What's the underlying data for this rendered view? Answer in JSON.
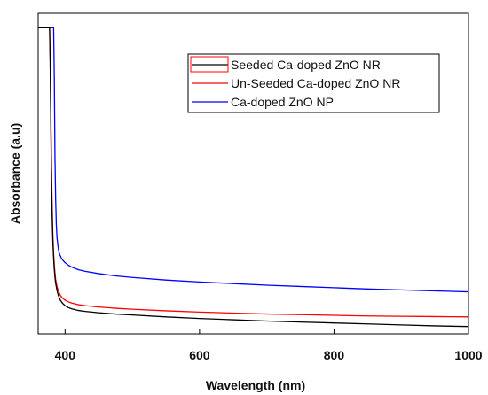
{
  "chart_data": {
    "type": "line",
    "xlabel": "Wavelength (nm)",
    "ylabel": "Absorbance (a.u)",
    "xlim": [
      360,
      1000
    ],
    "ylim": [
      0,
      1
    ],
    "x_ticks": [
      400,
      600,
      800,
      1000
    ],
    "x_tick_labels": [
      "400",
      "600",
      "800",
      "1000"
    ],
    "grid": false,
    "legend_position": "top-right",
    "series": [
      {
        "name": "Seeded Ca-doped ZnO NR",
        "color": "#000000",
        "x": [
          360,
          377,
          378,
          379,
          380,
          381,
          382,
          383,
          384,
          385,
          386,
          388,
          390,
          393,
          396,
          400,
          405,
          410,
          420,
          430,
          450,
          475,
          500,
          550,
          600,
          650,
          700,
          750,
          800,
          850,
          900,
          950,
          1000
        ],
        "y": [
          0.955,
          0.955,
          0.82,
          0.62,
          0.45,
          0.35,
          0.28,
          0.235,
          0.2,
          0.175,
          0.158,
          0.135,
          0.12,
          0.105,
          0.096,
          0.088,
          0.082,
          0.078,
          0.073,
          0.07,
          0.066,
          0.062,
          0.059,
          0.053,
          0.048,
          0.044,
          0.04,
          0.037,
          0.034,
          0.031,
          0.028,
          0.025,
          0.023
        ]
      },
      {
        "name": "Un-Seeded Ca-doped ZnO NR",
        "color": "#ff0000",
        "x": [
          360,
          377,
          378,
          379,
          380,
          381,
          382,
          383,
          384,
          385,
          386,
          388,
          390,
          393,
          396,
          400,
          405,
          410,
          420,
          430,
          450,
          475,
          500,
          550,
          600,
          650,
          700,
          750,
          800,
          850,
          900,
          950,
          1000
        ],
        "y": [
          0.955,
          0.955,
          0.85,
          0.66,
          0.49,
          0.38,
          0.3,
          0.25,
          0.215,
          0.19,
          0.17,
          0.148,
          0.134,
          0.12,
          0.112,
          0.105,
          0.1,
          0.096,
          0.091,
          0.088,
          0.084,
          0.08,
          0.077,
          0.072,
          0.068,
          0.065,
          0.062,
          0.06,
          0.058,
          0.056,
          0.055,
          0.054,
          0.053
        ]
      },
      {
        "name": "Ca-doped ZnO NP",
        "color": "#0000ff",
        "x": [
          360,
          377,
          383,
          384,
          385,
          386,
          387,
          388,
          390,
          392,
          395,
          400,
          405,
          410,
          420,
          430,
          450,
          475,
          500,
          550,
          600,
          650,
          700,
          750,
          800,
          850,
          900,
          950,
          1000
        ],
        "y": [
          0.955,
          0.955,
          0.955,
          0.8,
          0.55,
          0.42,
          0.34,
          0.3,
          0.265,
          0.248,
          0.234,
          0.222,
          0.214,
          0.208,
          0.2,
          0.195,
          0.188,
          0.181,
          0.176,
          0.168,
          0.162,
          0.157,
          0.152,
          0.148,
          0.144,
          0.14,
          0.137,
          0.134,
          0.131
        ]
      }
    ]
  }
}
